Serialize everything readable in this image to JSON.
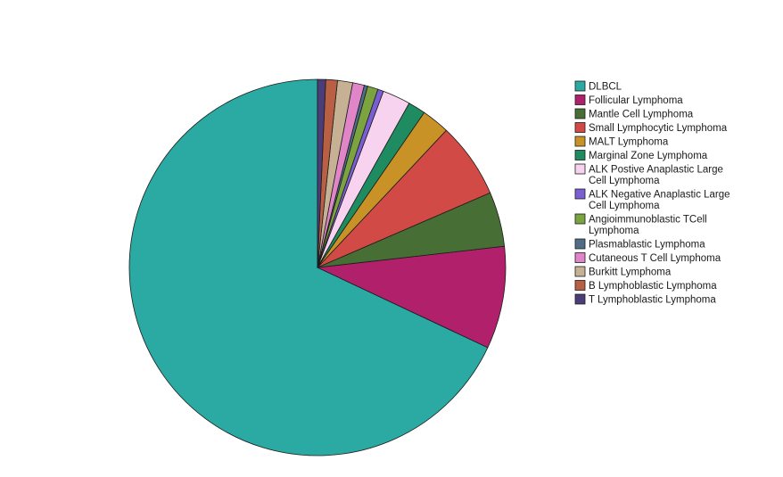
{
  "chart_data": {
    "type": "pie",
    "title": "",
    "legend_position": "right",
    "slices": [
      {
        "label": "DLBCL",
        "lines": [
          "DLBCL"
        ],
        "value": 68.0,
        "color": "#2ba9a3"
      },
      {
        "label": "Follicular Lymphoma",
        "lines": [
          "Follicular Lymphoma"
        ],
        "value": 8.8,
        "color": "#b1216b"
      },
      {
        "label": "Mantle Cell Lymphoma",
        "lines": [
          "Mantle Cell Lymphoma"
        ],
        "value": 4.7,
        "color": "#466e35"
      },
      {
        "label": "Small Lymphocytic Lymphoma",
        "lines": [
          "Small Lymphocytic Lymphoma"
        ],
        "value": 6.5,
        "color": "#d24a46"
      },
      {
        "label": "MALT Lymphoma",
        "lines": [
          "MALT Lymphoma"
        ],
        "value": 2.4,
        "color": "#c99227"
      },
      {
        "label": "Marginal Zone Lymphoma",
        "lines": [
          "Marginal Zone Lymphoma"
        ],
        "value": 1.5,
        "color": "#1f8b61"
      },
      {
        "label": "ALK Postive Anaplastic Large Cell Lymphoma",
        "lines": [
          "ALK Postive Anaplastic Large",
          "Cell Lymphoma"
        ],
        "value": 2.4,
        "color": "#f8d3ef"
      },
      {
        "label": "ALK Negative Anaplastic Large Cell Lymphoma",
        "lines": [
          "ALK Negative Anaplastic Large",
          "Cell Lymphoma"
        ],
        "value": 0.5,
        "color": "#7a5ed3"
      },
      {
        "label": "Angioimmunoblastic TCell Lymphoma",
        "lines": [
          "Angioimmunoblastic TCell",
          "Lymphoma"
        ],
        "value": 0.9,
        "color": "#7ba441"
      },
      {
        "label": "Plasmablastic Lymphoma",
        "lines": [
          "Plasmablastic Lymphoma"
        ],
        "value": 0.3,
        "color": "#4f6e86"
      },
      {
        "label": "Cutaneous T Cell Lymphoma",
        "lines": [
          "Cutaneous T Cell Lymphoma"
        ],
        "value": 1.0,
        "color": "#e085c7"
      },
      {
        "label": "Burkitt Lymphoma",
        "lines": [
          "Burkitt Lymphoma"
        ],
        "value": 1.3,
        "color": "#c6b195"
      },
      {
        "label": "B Lymphoblastic Lymphoma",
        "lines": [
          "B Lymphoblastic Lymphoma"
        ],
        "value": 1.0,
        "color": "#b95f43"
      },
      {
        "label": "T Lymphoblastic Lymphoma",
        "lines": [
          "T Lymphoblastic Lymphoma"
        ],
        "value": 0.7,
        "color": "#4b3d78"
      }
    ]
  }
}
